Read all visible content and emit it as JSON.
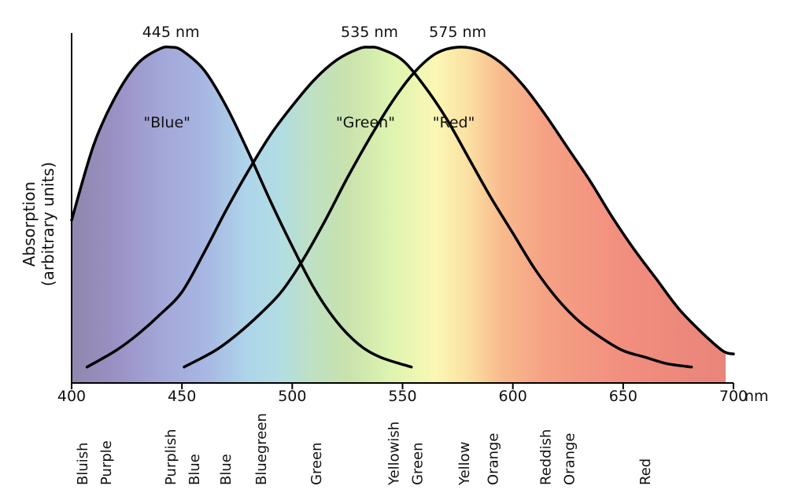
{
  "chart_data": {
    "type": "line",
    "xlabel": "",
    "x_unit": "nm",
    "ylabel": "Absorption",
    "ylabel_sub": "(arbitrary units)",
    "xlim": [
      400,
      700
    ],
    "x_ticks": [
      400,
      450,
      500,
      550,
      600,
      650,
      700
    ],
    "y_ticks_shown": false,
    "grid": false,
    "legend": "none",
    "series": [
      {
        "name": "\"Blue\"",
        "peak_label": "445 nm",
        "color": "#000000",
        "points": [
          [
            400,
            0.47
          ],
          [
            410,
            0.7
          ],
          [
            420,
            0.85
          ],
          [
            430,
            0.95
          ],
          [
            440,
            0.995
          ],
          [
            445,
            1.0
          ],
          [
            450,
            0.99
          ],
          [
            460,
            0.93
          ],
          [
            470,
            0.82
          ],
          [
            480,
            0.68
          ],
          [
            490,
            0.53
          ],
          [
            500,
            0.39
          ],
          [
            510,
            0.26
          ],
          [
            520,
            0.16
          ],
          [
            530,
            0.09
          ],
          [
            540,
            0.05
          ],
          [
            554,
            0.02
          ]
        ]
      },
      {
        "name": "\"Green\"",
        "peak_label": "535 nm",
        "color": "#000000",
        "points": [
          [
            407,
            0.02
          ],
          [
            420,
            0.07
          ],
          [
            430,
            0.12
          ],
          [
            440,
            0.18
          ],
          [
            450,
            0.25
          ],
          [
            460,
            0.37
          ],
          [
            470,
            0.5
          ],
          [
            480,
            0.62
          ],
          [
            490,
            0.73
          ],
          [
            500,
            0.82
          ],
          [
            510,
            0.9
          ],
          [
            520,
            0.96
          ],
          [
            530,
            0.995
          ],
          [
            535,
            1.0
          ],
          [
            540,
            0.995
          ],
          [
            550,
            0.96
          ],
          [
            560,
            0.88
          ],
          [
            570,
            0.78
          ],
          [
            580,
            0.66
          ],
          [
            590,
            0.54
          ],
          [
            600,
            0.43
          ],
          [
            610,
            0.32
          ],
          [
            620,
            0.23
          ],
          [
            630,
            0.16
          ],
          [
            640,
            0.11
          ],
          [
            650,
            0.07
          ],
          [
            660,
            0.05
          ],
          [
            670,
            0.03
          ],
          [
            681,
            0.02
          ]
        ]
      },
      {
        "name": "\"Red\"",
        "peak_label": "575 nm",
        "color": "#000000",
        "points": [
          [
            451,
            0.02
          ],
          [
            465,
            0.07
          ],
          [
            475,
            0.12
          ],
          [
            485,
            0.18
          ],
          [
            495,
            0.25
          ],
          [
            505,
            0.35
          ],
          [
            515,
            0.47
          ],
          [
            525,
            0.6
          ],
          [
            535,
            0.72
          ],
          [
            545,
            0.83
          ],
          [
            555,
            0.92
          ],
          [
            565,
            0.98
          ],
          [
            575,
            1.0
          ],
          [
            585,
            0.99
          ],
          [
            595,
            0.95
          ],
          [
            605,
            0.88
          ],
          [
            615,
            0.79
          ],
          [
            625,
            0.69
          ],
          [
            635,
            0.59
          ],
          [
            645,
            0.48
          ],
          [
            655,
            0.38
          ],
          [
            665,
            0.29
          ],
          [
            675,
            0.2
          ],
          [
            685,
            0.13
          ],
          [
            695,
            0.07
          ],
          [
            700,
            0.06
          ]
        ]
      }
    ],
    "color_names": [
      {
        "lines": [
          "Bluish",
          "Purple"
        ],
        "x": 405
      },
      {
        "lines": [
          "Purplish",
          "Blue"
        ],
        "x": 445
      },
      {
        "lines": [
          "Blue"
        ],
        "x": 470
      },
      {
        "lines": [
          "Bluegreen"
        ],
        "x": 486
      },
      {
        "lines": [
          "Green"
        ],
        "x": 511
      },
      {
        "lines": [
          "Yellowish",
          "Green"
        ],
        "x": 546
      },
      {
        "lines": [
          "Yellow"
        ],
        "x": 578
      },
      {
        "lines": [
          "Orange"
        ],
        "x": 591
      },
      {
        "lines": [
          "Reddish",
          "Orange"
        ],
        "x": 615
      },
      {
        "lines": [
          "Red"
        ],
        "x": 660
      }
    ],
    "spectrum_colors": [
      {
        "x": 400,
        "color": "#8f87ad"
      },
      {
        "x": 420,
        "color": "#9a91c4"
      },
      {
        "x": 440,
        "color": "#a3a6d8"
      },
      {
        "x": 460,
        "color": "#a7b6e2"
      },
      {
        "x": 480,
        "color": "#aed5ea"
      },
      {
        "x": 495,
        "color": "#b2dde2"
      },
      {
        "x": 510,
        "color": "#bfe0c1"
      },
      {
        "x": 525,
        "color": "#c9e2ad"
      },
      {
        "x": 545,
        "color": "#def4b0"
      },
      {
        "x": 565,
        "color": "#fbf7b4"
      },
      {
        "x": 580,
        "color": "#fbe0a2"
      },
      {
        "x": 595,
        "color": "#f8ba8d"
      },
      {
        "x": 615,
        "color": "#f5a184"
      },
      {
        "x": 650,
        "color": "#f28e7e"
      },
      {
        "x": 700,
        "color": "#e9857a"
      }
    ]
  }
}
